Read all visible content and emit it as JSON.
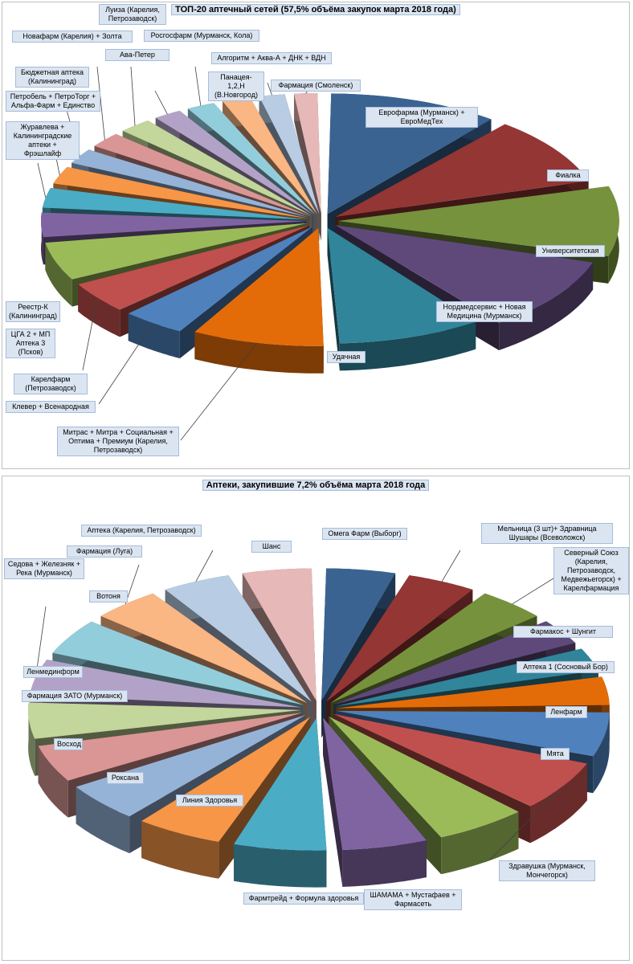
{
  "chart_data": [
    {
      "type": "pie",
      "title": "ТОП-20 аптечный сетей (57,5% объёма закупок марта 2018 года)",
      "slices": [
        {
          "label": "Еврофарма (Мурманск) + ЕвроМедТех",
          "value": 7.0,
          "color": "#3a6391"
        },
        {
          "label": "Фиалка",
          "value": 6.2,
          "color": "#943634"
        },
        {
          "label": "Университетская",
          "value": 6.0,
          "color": "#76923c"
        },
        {
          "label": "Нордмедсервис + Новая Медицина (Мурманск)",
          "value": 6.6,
          "color": "#5f497a"
        },
        {
          "label": "Удачная",
          "value": 6.2,
          "color": "#31859b"
        },
        {
          "label": "Митрас + Митра + Социальная + Оптима + Премиум (Карелия, Петрозаводск)",
          "value": 5.6,
          "color": "#e36c09"
        },
        {
          "label": "Клевер + Всенародная",
          "value": 2.8,
          "color": "#4f81bd"
        },
        {
          "label": "Карелфарм (Петрозаводск)",
          "value": 3.0,
          "color": "#c0504d"
        },
        {
          "label": "ЦГА 2 + МП Аптека 3 (Псков)",
          "value": 3.6,
          "color": "#9bbb59"
        },
        {
          "label": "Реестр-К (Калининград)",
          "value": 2.4,
          "color": "#8064a2"
        },
        {
          "label": "Журавлева + Калининградские аптеки + Фрэшлайф",
          "value": 2.0,
          "color": "#4bacc6"
        },
        {
          "label": "Петробель + ПетроТорг + Альфа-Фарм + Единство",
          "value": 1.8,
          "color": "#f79646"
        },
        {
          "label": "Бюджетная аптека (Калининград)",
          "value": 1.6,
          "color": "#95b3d7"
        },
        {
          "label": "Новафарм (Карелия) + Золта",
          "value": 1.6,
          "color": "#d99694"
        },
        {
          "label": "Луиза (Карелия, Петрозаводск)",
          "value": 1.6,
          "color": "#c3d69b"
        },
        {
          "label": "Ава-Петер",
          "value": 1.4,
          "color": "#b2a2c7"
        },
        {
          "label": "Росгосфарм (Мурманск, Кола)",
          "value": 1.4,
          "color": "#92cddc"
        },
        {
          "label": "Панацея- 1,2,Н (В.Новгород)",
          "value": 1.4,
          "color": "#fab683"
        },
        {
          "label": "Алгоритм + Аква-А + ДНК + ВДН",
          "value": 1.3,
          "color": "#b8cce4"
        },
        {
          "label": "Фармация (Смоленск)",
          "value": 1.2,
          "color": "#e6b9b8"
        }
      ]
    },
    {
      "type": "pie",
      "title": "Аптеки, закупившие 7,2% объёма марта 2018 года",
      "slices": [
        {
          "label": "Омега Фарм (Выборг)",
          "value": 4.3,
          "color": "#3a6391"
        },
        {
          "label": "Мельница (3 шт)+ Здравница Шушары (Всеволожск)",
          "value": 4.3,
          "color": "#943634"
        },
        {
          "label": "Северный Союз (Карелия, Петрозаводск, Медвежьегорск) + Карелфармация",
          "value": 4.3,
          "color": "#76923c"
        },
        {
          "label": "Фармакос + Шунгит",
          "value": 3.4,
          "color": "#5f497a"
        },
        {
          "label": "Аптека 1 (Сосновый Бор)",
          "value": 3.1,
          "color": "#31859b"
        },
        {
          "label": "Ленфарм",
          "value": 3.7,
          "color": "#e36c09"
        },
        {
          "label": "Мята",
          "value": 5.5,
          "color": "#4f81bd"
        },
        {
          "label": "Здравушка (Мурманск, Мончегорск)",
          "value": 6.2,
          "color": "#c0504d"
        },
        {
          "label": "ШАМАМА + Мустафаев + Фармасеть",
          "value": 5.6,
          "color": "#9bbb59"
        },
        {
          "label": "Фармтрейд + Формула здоровья",
          "value": 5.2,
          "color": "#8064a2"
        },
        {
          "label": "Линия Здоровья",
          "value": 5.6,
          "color": "#4bacc6"
        },
        {
          "label": "Роксана",
          "value": 5.3,
          "color": "#f79646"
        },
        {
          "label": "Восход",
          "value": 4.9,
          "color": "#95b3d7"
        },
        {
          "label": "Фармация ЗАТО (Мурманск)",
          "value": 4.7,
          "color": "#d99694"
        },
        {
          "label": "Ленмединформ",
          "value": 4.6,
          "color": "#c3d69b"
        },
        {
          "label": "Седова + Железняк + Река (Мурманск)",
          "value": 4.6,
          "color": "#b2a2c7"
        },
        {
          "label": "Вотоня",
          "value": 4.6,
          "color": "#92cddc"
        },
        {
          "label": "Фармация (Луга)",
          "value": 4.3,
          "color": "#fab683"
        },
        {
          "label": "Аптека (Карелия, Петрозаводск)",
          "value": 4.3,
          "color": "#b8cce4"
        },
        {
          "label": "Шанс",
          "value": 4.3,
          "color": "#e6b9b8"
        }
      ]
    }
  ]
}
